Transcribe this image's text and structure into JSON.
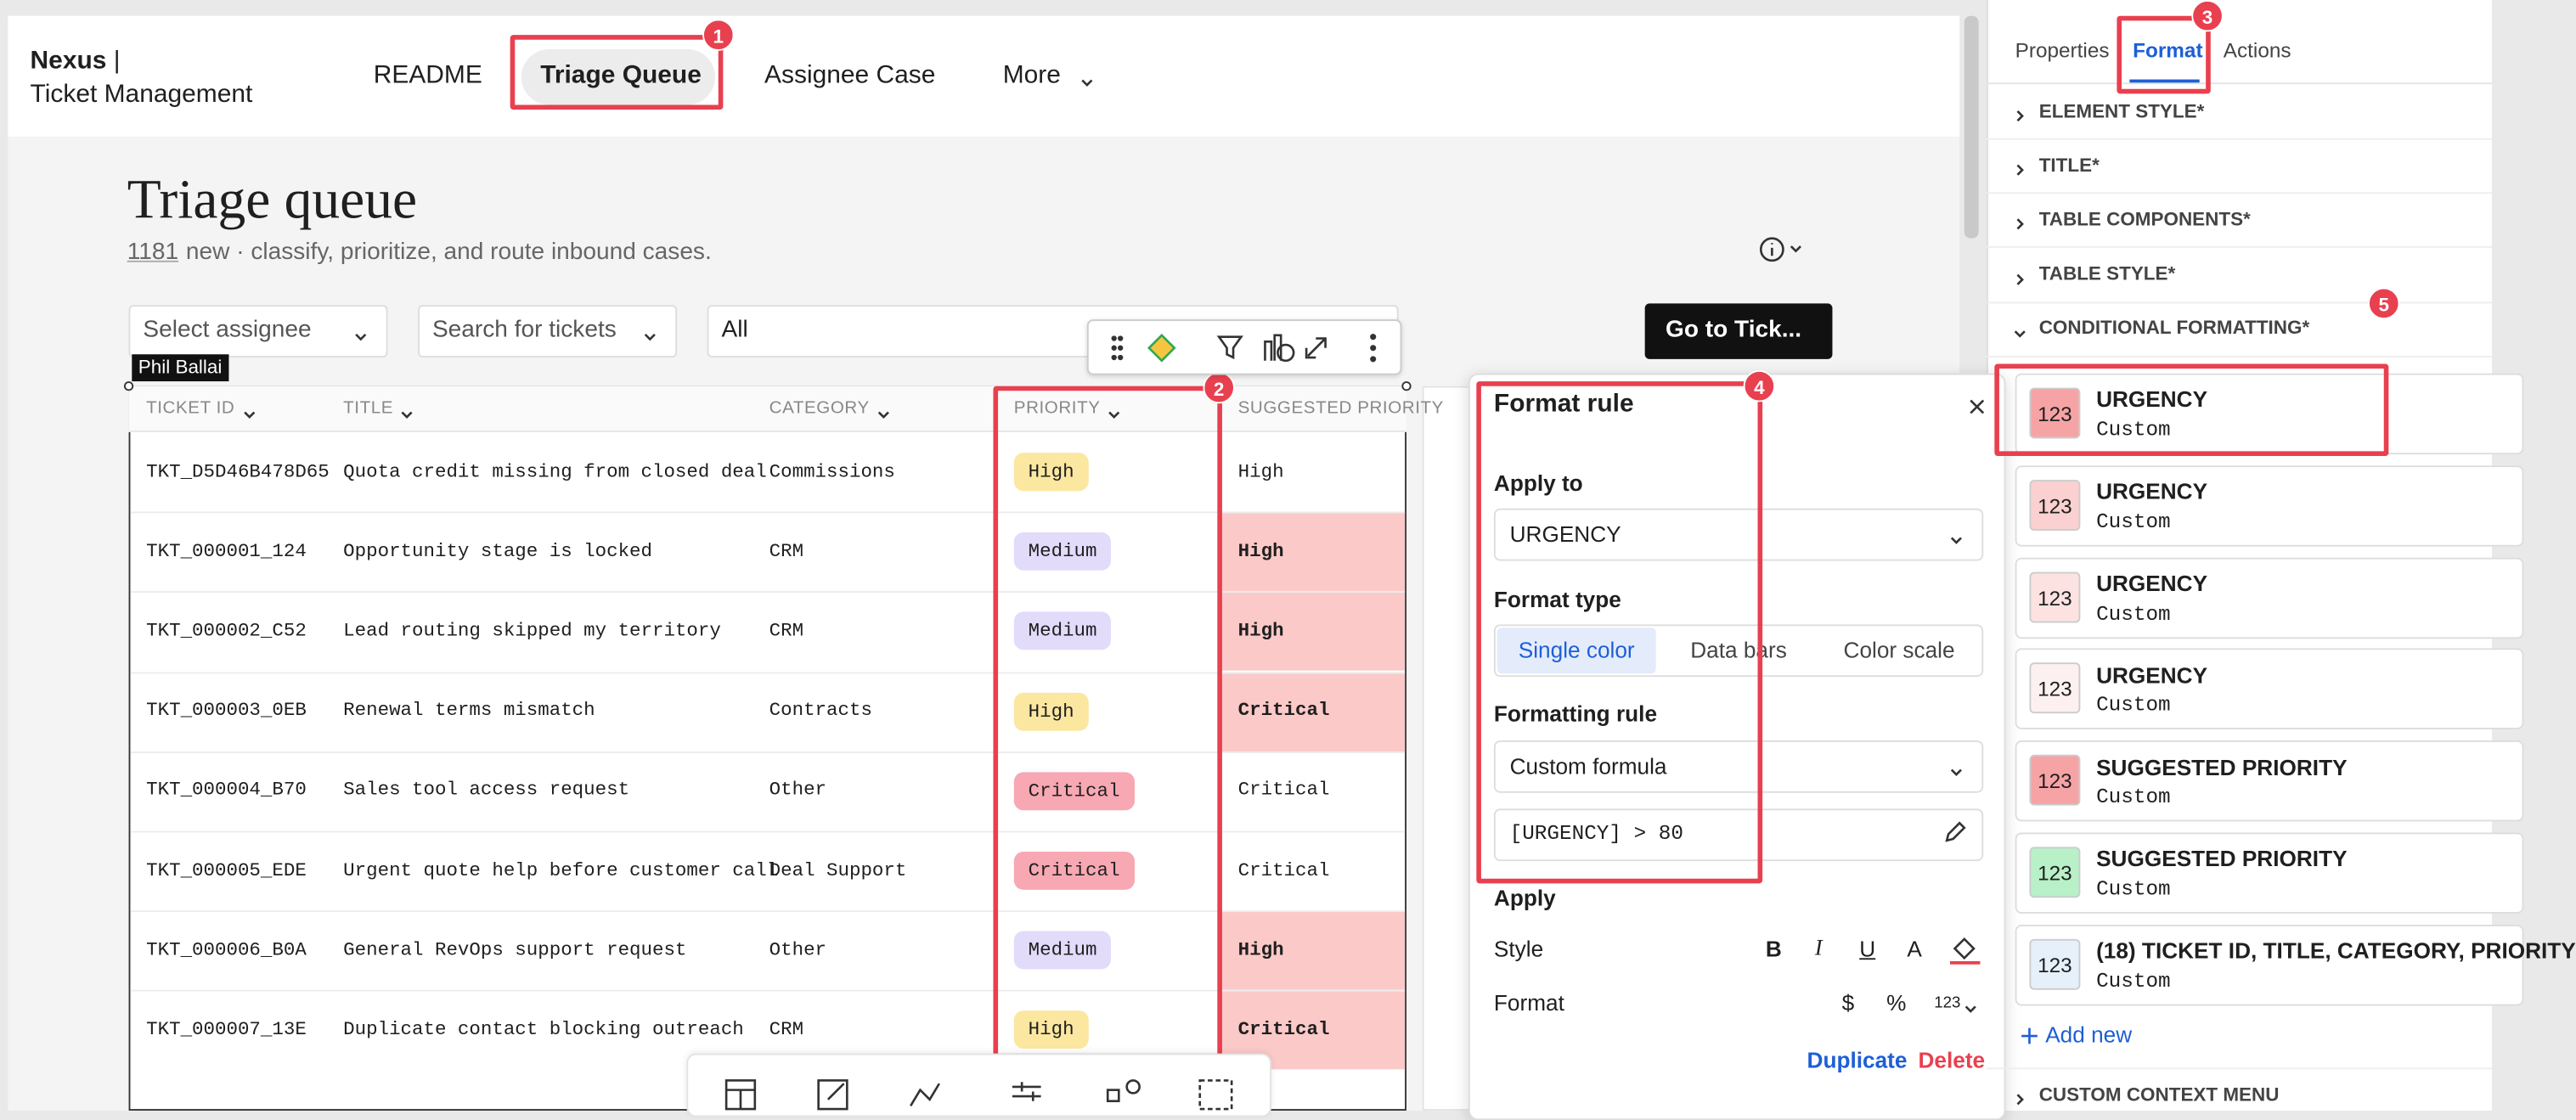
{
  "header": {
    "brand": {
      "name": "Nexus",
      "separator": "|",
      "product": "Ticket Management"
    },
    "nav": [
      "README",
      "Triage Queue",
      "Assignee Case",
      "More"
    ],
    "active_nav": 1
  },
  "page": {
    "title": "Triage queue",
    "count": "1181",
    "subtitle": "new · classify, prioritize, and route inbound cases."
  },
  "filters": [
    "Select assignee",
    "Search for tickets",
    "All"
  ],
  "button": "Go to Tick...",
  "tooltip": "Phil Ballai",
  "table": {
    "columns": [
      "TICKET ID",
      "TITLE",
      "CATEGORY",
      "PRIORITY",
      "SUGGESTED PRIORITY"
    ],
    "rows": [
      [
        "TKT_D5D46B478D65",
        "Quota credit missing from closed deal",
        "Commissions",
        "High",
        "High"
      ],
      [
        "TKT_000001_124",
        "Opportunity stage is locked",
        "CRM",
        "Medium",
        "High"
      ],
      [
        "TKT_000002_C52",
        "Lead routing skipped my territory",
        "CRM",
        "Medium",
        "High"
      ],
      [
        "TKT_000003_0EB",
        "Renewal terms mismatch",
        "Contracts",
        "High",
        "Critical"
      ],
      [
        "TKT_000004_B70",
        "Sales tool access request",
        "Other",
        "Critical",
        "Critical"
      ],
      [
        "TKT_000005_EDE",
        "Urgent quote help before customer call",
        "Deal Support",
        "Critical",
        "Critical"
      ],
      [
        "TKT_000006_B0A",
        "General RevOps support request",
        "Other",
        "Medium",
        "High"
      ],
      [
        "TKT_000007_13E",
        "Duplicate contact blocking outreach",
        "CRM",
        "High",
        "Critical"
      ]
    ],
    "suggested_highlight": [
      false,
      true,
      true,
      true,
      false,
      false,
      true,
      true
    ],
    "priority_colors": {
      "High": "#fbe7a0",
      "Medium": "#e2dbfa",
      "Critical": "#f7a8b3"
    },
    "highlight_color": "#fcc9c9"
  },
  "format_rule": {
    "title": "Format rule",
    "apply_to_label": "Apply to",
    "apply_to": "URGENCY",
    "format_type_label": "Format type",
    "format_types": [
      "Single color",
      "Data bars",
      "Color scale"
    ],
    "active_type": 0,
    "rule_label": "Formatting rule",
    "rule": "Custom formula",
    "formula": "[URGENCY] > 80",
    "apply_label": "Apply",
    "style_label": "Style",
    "style_buttons": [
      "B",
      "I",
      "U",
      "A"
    ],
    "format_label": "Format",
    "format_buttons": [
      "$",
      "%",
      "123"
    ],
    "duplicate": "Duplicate",
    "delete": "Delete"
  },
  "sidebar": {
    "tabs": [
      "Properties",
      "Format",
      "Actions"
    ],
    "active_tab": 1,
    "sections": [
      "ELEMENT STYLE*",
      "TITLE*",
      "TABLE COMPONENTS*",
      "TABLE STYLE*",
      "CONDITIONAL FORMATTING*"
    ],
    "rules": [
      {
        "icon": "123",
        "name": "URGENCY",
        "type": "Custom",
        "color": "#f6a3a6"
      },
      {
        "icon": "123",
        "name": "URGENCY",
        "type": "Custom",
        "color": "#fad0d0"
      },
      {
        "icon": "123",
        "name": "URGENCY",
        "type": "Custom",
        "color": "#fde2e2"
      },
      {
        "icon": "123",
        "name": "URGENCY",
        "type": "Custom",
        "color": "#fdf0f0"
      },
      {
        "icon": "123",
        "name": "SUGGESTED PRIORITY",
        "type": "Custom",
        "color": "#f6a3a6"
      },
      {
        "icon": "123",
        "name": "SUGGESTED PRIORITY",
        "type": "Custom",
        "color": "#b8f0c8"
      },
      {
        "icon": "123",
        "name": "(18) TICKET ID, TITLE, CATEGORY, PRIORITY",
        "type": "Custom",
        "color": "#e5f0fb"
      }
    ],
    "add_new": "Add new",
    "last_section": "CUSTOM CONTEXT MENU"
  },
  "annotations": [
    "1",
    "2",
    "3",
    "4",
    "5"
  ]
}
